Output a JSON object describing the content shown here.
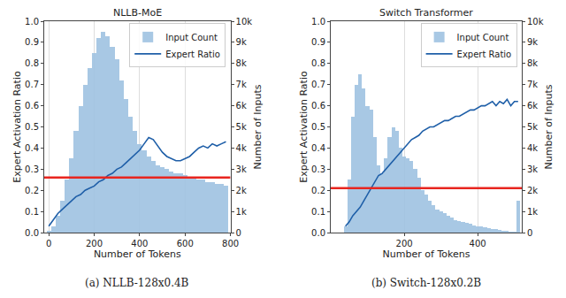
{
  "chart_data": [
    {
      "type": "bar_line",
      "title": "NLLB-MoE",
      "caption": "(a) NLLB-128x0.4B",
      "x_label": "Number of Tokens",
      "y_label": "Expert Activation Ratio",
      "y2_label": "Number of Inputs",
      "xlim": [
        -20,
        800
      ],
      "xticks": [
        0,
        200,
        400,
        600,
        800
      ],
      "ylim": [
        0,
        1
      ],
      "yticks": [
        {
          "value": 0,
          "label": "0.0"
        },
        0.1,
        0.2,
        0.3,
        0.4,
        0.5,
        0.6,
        0.7,
        0.8,
        0.9,
        {
          "value": 1,
          "label": "1.0"
        }
      ],
      "y2lim": [
        0,
        10000
      ],
      "y2ticks": [
        0,
        {
          "value": 1000,
          "label": "1k"
        },
        {
          "value": 2000,
          "label": "2k"
        },
        {
          "value": 3000,
          "label": "3k"
        },
        {
          "value": 4000,
          "label": "4k"
        },
        {
          "value": 5000,
          "label": "5k"
        },
        {
          "value": 6000,
          "label": "6k"
        },
        {
          "value": 7000,
          "label": "7k"
        },
        {
          "value": 8000,
          "label": "8k"
        },
        {
          "value": 9000,
          "label": "9k"
        },
        {
          "value": 10000,
          "label": "10k"
        }
      ],
      "grid": true,
      "legend": "upper right",
      "x": [
        0,
        20,
        40,
        60,
        80,
        100,
        120,
        140,
        160,
        180,
        200,
        220,
        240,
        260,
        280,
        300,
        320,
        340,
        360,
        380,
        400,
        420,
        440,
        460,
        480,
        500,
        520,
        540,
        560,
        580,
        600,
        620,
        640,
        660,
        680,
        700,
        720,
        740,
        760,
        780
      ],
      "series": [
        {
          "name": "Expert Ratio",
          "type": "line",
          "color": "#1f5fa8",
          "values": [
            0.03,
            0.06,
            0.09,
            0.11,
            0.13,
            0.15,
            0.17,
            0.18,
            0.2,
            0.21,
            0.22,
            0.24,
            0.25,
            0.27,
            0.28,
            0.3,
            0.31,
            0.33,
            0.35,
            0.37,
            0.39,
            0.42,
            0.45,
            0.44,
            0.41,
            0.38,
            0.36,
            0.35,
            0.34,
            0.34,
            0.35,
            0.36,
            0.38,
            0.4,
            0.41,
            0.4,
            0.42,
            0.41,
            0.42,
            0.43
          ]
        },
        {
          "name": "Input Count",
          "type": "bar",
          "axis": "y2",
          "color": "#9fc3e2",
          "values": [
            100,
            300,
            800,
            1500,
            2500,
            3500,
            4800,
            6000,
            7000,
            7800,
            8500,
            9200,
            9500,
            9300,
            8800,
            8200,
            7200,
            6300,
            5500,
            4800,
            4200,
            3900,
            3600,
            3400,
            3200,
            3100,
            3000,
            2900,
            2800,
            2800,
            2700,
            2600,
            2600,
            2500,
            2500,
            2400,
            2400,
            2300,
            2300,
            2200
          ]
        }
      ],
      "threshold": {
        "value": 0.26,
        "color": "#e8251f"
      }
    },
    {
      "type": "bar_line",
      "title": "Switch Transformer",
      "caption": "(b) Switch-128x0.2B",
      "x_label": "Number of Tokens",
      "y_label": "Expert Activation Ratio",
      "y2_label": "Number of Inputs",
      "xlim": [
        0,
        520
      ],
      "xticks": [
        200,
        400
      ],
      "ylim": [
        0,
        1
      ],
      "yticks": [
        {
          "value": 0,
          "label": "0.0"
        },
        0.1,
        0.2,
        0.3,
        0.4,
        0.5,
        0.6,
        0.7,
        0.8,
        0.9,
        {
          "value": 1,
          "label": "1.0"
        }
      ],
      "y2lim": [
        0,
        10000
      ],
      "y2ticks": [
        0,
        {
          "value": 1000,
          "label": "1k"
        },
        {
          "value": 2000,
          "label": "2k"
        },
        {
          "value": 3000,
          "label": "3k"
        },
        {
          "value": 4000,
          "label": "4k"
        },
        {
          "value": 5000,
          "label": "5k"
        },
        {
          "value": 6000,
          "label": "6k"
        },
        {
          "value": 7000,
          "label": "7k"
        },
        {
          "value": 8000,
          "label": "8k"
        },
        {
          "value": 9000,
          "label": "9k"
        },
        {
          "value": 10000,
          "label": "10k"
        }
      ],
      "grid": true,
      "legend": "upper right",
      "x": [
        40,
        50,
        60,
        70,
        80,
        90,
        100,
        110,
        120,
        130,
        140,
        150,
        160,
        170,
        180,
        190,
        200,
        210,
        220,
        230,
        240,
        250,
        260,
        270,
        280,
        290,
        300,
        310,
        320,
        330,
        340,
        350,
        360,
        370,
        380,
        390,
        400,
        410,
        420,
        430,
        440,
        450,
        460,
        470,
        480,
        490,
        500,
        510
      ],
      "series": [
        {
          "name": "Expert Ratio",
          "type": "line",
          "color": "#1f5fa8",
          "values": [
            0.03,
            0.05,
            0.08,
            0.1,
            0.12,
            0.15,
            0.18,
            0.21,
            0.24,
            0.27,
            0.28,
            0.3,
            0.32,
            0.34,
            0.36,
            0.38,
            0.4,
            0.42,
            0.44,
            0.45,
            0.46,
            0.48,
            0.49,
            0.5,
            0.5,
            0.51,
            0.52,
            0.53,
            0.53,
            0.54,
            0.55,
            0.55,
            0.56,
            0.57,
            0.58,
            0.58,
            0.59,
            0.6,
            0.6,
            0.61,
            0.62,
            0.6,
            0.62,
            0.61,
            0.63,
            0.6,
            0.62,
            0.62
          ]
        },
        {
          "name": "Input Count",
          "type": "bar",
          "axis": "y2",
          "color": "#9fc3e2",
          "values": [
            300,
            2500,
            5500,
            7000,
            7500,
            6800,
            6000,
            5800,
            4500,
            3200,
            2800,
            3500,
            4500,
            5000,
            4800,
            4000,
            3600,
            3500,
            3400,
            3000,
            2600,
            2000,
            1800,
            1500,
            1300,
            1100,
            1000,
            900,
            800,
            700,
            600,
            550,
            500,
            450,
            400,
            350,
            300,
            280,
            250,
            200,
            180,
            150,
            120,
            100,
            80,
            60,
            50,
            1500
          ]
        }
      ],
      "threshold": {
        "value": 0.21,
        "color": "#e8251f"
      }
    }
  ]
}
